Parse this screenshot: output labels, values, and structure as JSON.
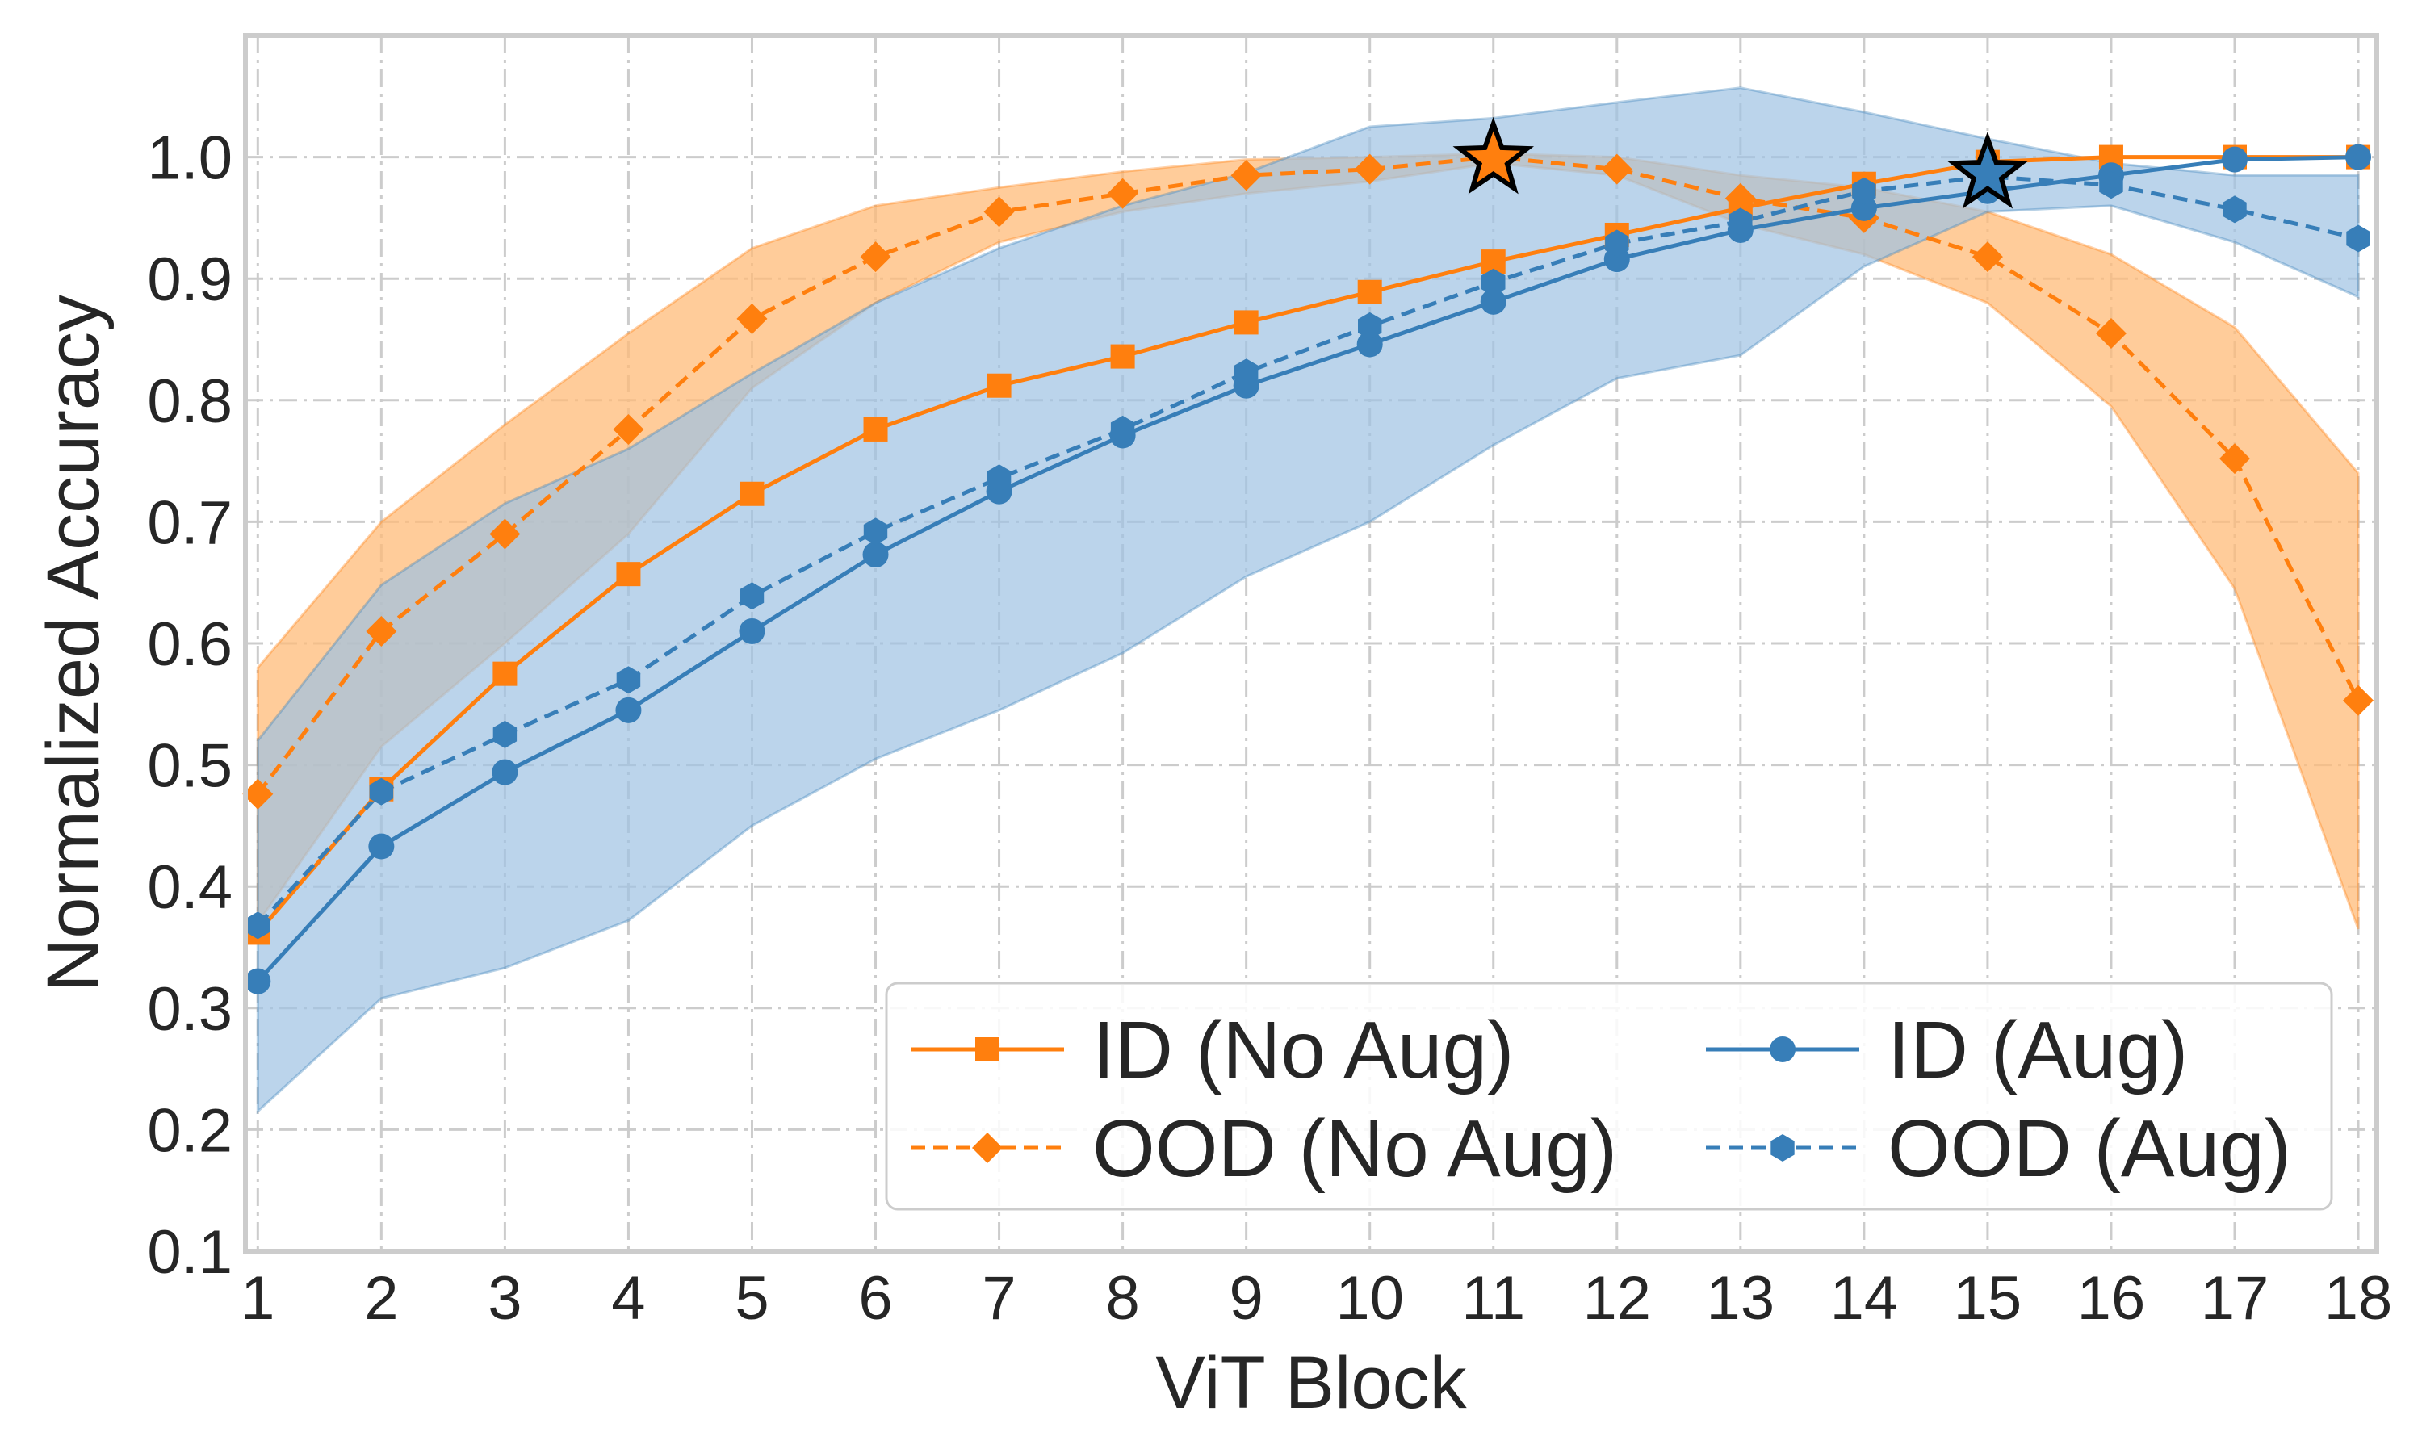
{
  "chart_data": {
    "type": "line",
    "title": "",
    "xlabel": "ViT Block",
    "ylabel": "Normalized  Accuracy",
    "x": [
      1,
      2,
      3,
      4,
      5,
      6,
      7,
      8,
      9,
      10,
      11,
      12,
      13,
      14,
      15,
      16,
      17,
      18
    ],
    "xlim": [
      0.9,
      18.15
    ],
    "ylim": [
      0.1,
      1.1
    ],
    "xticks": [
      "1",
      "2",
      "3",
      "4",
      "5",
      "6",
      "7",
      "8",
      "9",
      "10",
      "11",
      "12",
      "13",
      "14",
      "15",
      "16",
      "17",
      "18"
    ],
    "yticks": [
      "0.1",
      "0.2",
      "0.3",
      "0.4",
      "0.5",
      "0.6",
      "0.7",
      "0.8",
      "0.9",
      "1.0"
    ],
    "grid": true,
    "legend_position": "lower-right",
    "colors": {
      "orange": "#ff7f0e",
      "blue": "#377eb8",
      "band_orange": "#ffbb78",
      "band_blue": "#9ec2e2"
    },
    "series": [
      {
        "name": "ID (No Aug)",
        "color": "#ff7f0e",
        "linestyle": "solid",
        "marker": "square",
        "values": [
          0.362,
          0.48,
          0.575,
          0.657,
          0.723,
          0.776,
          0.812,
          0.836,
          0.864,
          0.889,
          0.914,
          0.936,
          0.958,
          0.978,
          0.996,
          1.0,
          1.0,
          1.0
        ]
      },
      {
        "name": "OOD (No Aug)",
        "color": "#ff7f0e",
        "linestyle": "dashed",
        "marker": "diamond",
        "values": [
          0.476,
          0.61,
          0.69,
          0.776,
          0.867,
          0.918,
          0.955,
          0.97,
          0.985,
          0.99,
          1.0,
          0.99,
          0.966,
          0.95,
          0.918,
          0.855,
          0.752,
          0.553
        ],
        "band_lower": [
          0.37,
          0.515,
          0.6,
          0.69,
          0.81,
          0.88,
          0.93,
          0.955,
          0.97,
          0.98,
          0.995,
          0.985,
          0.945,
          0.92,
          0.88,
          0.795,
          0.645,
          0.365
        ],
        "band_upper": [
          0.58,
          0.7,
          0.78,
          0.855,
          0.925,
          0.96,
          0.975,
          0.988,
          0.998,
          1.0,
          1.003,
          1.0,
          0.985,
          0.975,
          0.955,
          0.92,
          0.86,
          0.74
        ]
      },
      {
        "name": "ID (Aug)",
        "color": "#377eb8",
        "linestyle": "solid",
        "marker": "circle",
        "values": [
          0.322,
          0.433,
          0.494,
          0.545,
          0.61,
          0.673,
          0.725,
          0.771,
          0.812,
          0.846,
          0.881,
          0.916,
          0.94,
          0.958,
          0.972,
          0.985,
          0.998,
          1.0
        ],
        "band_lower": [
          0.215,
          0.308,
          0.333,
          0.372,
          0.45,
          0.505,
          0.545,
          0.592,
          0.655,
          0.7,
          0.763,
          0.818,
          0.837,
          0.91,
          0.955,
          0.96,
          0.93,
          0.885
        ],
        "band_upper": [
          0.52,
          0.648,
          0.715,
          0.76,
          0.822,
          0.88,
          0.925,
          0.96,
          0.987,
          1.025,
          1.032,
          1.045,
          1.057,
          1.037,
          1.015,
          0.995,
          0.985,
          0.985
        ]
      },
      {
        "name": "OOD (Aug)",
        "color": "#377eb8",
        "linestyle": "dashed",
        "marker": "hexagon",
        "values": [
          0.368,
          0.478,
          0.525,
          0.57,
          0.639,
          0.692,
          0.736,
          0.776,
          0.823,
          0.861,
          0.897,
          0.929,
          0.947,
          0.972,
          0.984,
          0.977,
          0.957,
          0.933
        ]
      }
    ],
    "annotations": [
      {
        "type": "star",
        "x": 11,
        "y": 0.998,
        "color": "#ff7f0e"
      },
      {
        "type": "star",
        "x": 15,
        "y": 0.986,
        "color": "#377eb8"
      }
    ]
  }
}
